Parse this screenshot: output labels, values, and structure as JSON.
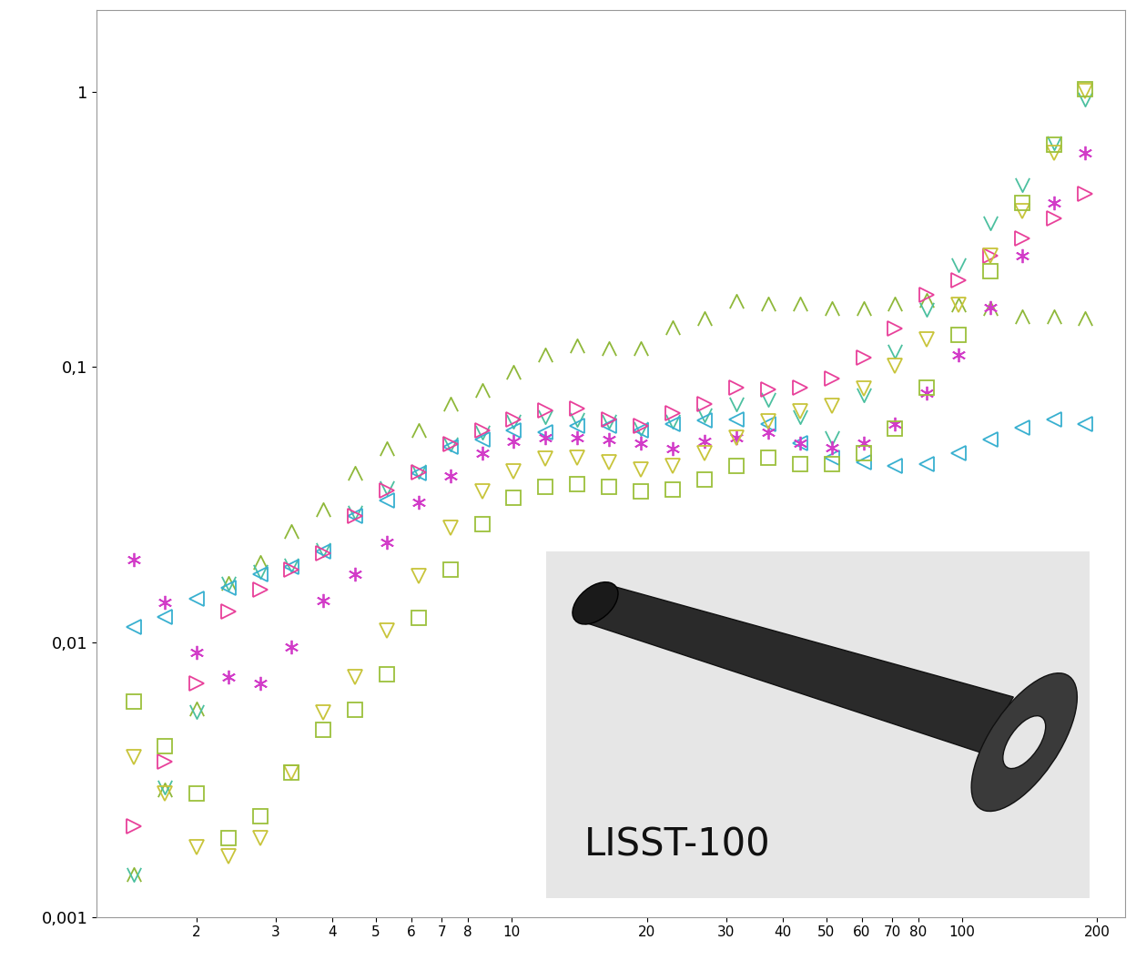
{
  "chart_data": {
    "type": "scatter",
    "log": true,
    "grid": false,
    "tick_labels": true,
    "xlim": [
      1.2,
      230
    ],
    "ylim": [
      0.001,
      2
    ],
    "xticks": [
      2,
      3,
      4,
      5,
      6,
      7,
      8,
      10,
      20,
      30,
      40,
      50,
      60,
      70,
      80,
      100,
      200
    ],
    "yticks": [
      {
        "value": 0.001,
        "label": "0,001"
      },
      {
        "value": 0.01,
        "label": "0,01"
      },
      {
        "value": 0.1,
        "label": "0,1"
      },
      1
    ],
    "annotations": [
      "LISST-100"
    ],
    "x": [
      1.45,
      1.7,
      2.0,
      2.35,
      2.77,
      3.25,
      3.83,
      4.5,
      5.3,
      6.23,
      7.33,
      8.62,
      10.1,
      11.9,
      14.0,
      16.5,
      19.4,
      22.8,
      26.9,
      31.6,
      37.2,
      43.7,
      51.4,
      60.5,
      71.1,
      83.7,
      98.4,
      116,
      136,
      160,
      188
    ],
    "series": [
      {
        "color": "#8fb83a",
        "marker": "caret",
        "values": [
          0.00143,
          0.0029,
          0.0057,
          0.0164,
          0.0195,
          0.0252,
          0.0303,
          0.041,
          0.0505,
          0.0587,
          0.0735,
          0.0823,
          0.0956,
          0.111,
          0.12,
          0.117,
          0.117,
          0.139,
          0.15,
          0.174,
          0.17,
          0.17,
          0.164,
          0.164,
          0.17,
          0.175,
          0.168,
          0.164,
          0.153,
          0.153,
          0.15
        ]
      },
      {
        "color": "#4cc0a0",
        "marker": "vee",
        "values": [
          0.00143,
          0.00297,
          0.0056,
          0.0164,
          0.018,
          0.019,
          0.0217,
          0.0296,
          0.0363,
          0.0419,
          0.0525,
          0.058,
          0.0636,
          0.066,
          0.0643,
          0.0636,
          0.0597,
          0.0636,
          0.067,
          0.0735,
          0.076,
          0.066,
          0.0553,
          0.079,
          0.114,
          0.162,
          0.235,
          0.334,
          0.462,
          0.657,
          0.942
        ]
      },
      {
        "color": "#38b0d0",
        "marker": "triangle_left",
        "values": [
          0.0113,
          0.0123,
          0.0144,
          0.0158,
          0.0177,
          0.0188,
          0.0213,
          0.0288,
          0.0327,
          0.041,
          0.0513,
          0.0545,
          0.0587,
          0.058,
          0.061,
          0.061,
          0.059,
          0.062,
          0.064,
          0.0645,
          0.062,
          0.0529,
          0.0469,
          0.045,
          0.0436,
          0.0443,
          0.0487,
          0.0545,
          0.06,
          0.0643,
          0.0621
        ]
      },
      {
        "color": "#e8409a",
        "marker": "triangle_right",
        "values": [
          0.00213,
          0.00366,
          0.00708,
          0.0129,
          0.0155,
          0.0184,
          0.021,
          0.0288,
          0.0355,
          0.0413,
          0.0525,
          0.0587,
          0.0643,
          0.0698,
          0.0708,
          0.0643,
          0.061,
          0.0682,
          0.0735,
          0.0842,
          0.083,
          0.0842,
          0.0907,
          0.1086,
          0.138,
          0.1835,
          0.207,
          0.2535,
          0.2945,
          0.347,
          0.428
        ]
      },
      {
        "color": "#d23cc8",
        "marker": "asterisk",
        "values": [
          0.02,
          0.0139,
          0.00914,
          0.00746,
          0.00708,
          0.00956,
          0.0141,
          0.0177,
          0.023,
          0.0322,
          0.0403,
          0.0487,
          0.0537,
          0.0553,
          0.0553,
          0.0545,
          0.0529,
          0.0505,
          0.0537,
          0.0553,
          0.058,
          0.0529,
          0.051,
          0.0529,
          0.062,
          0.0805,
          0.111,
          0.165,
          0.254,
          0.397,
          0.601
        ]
      },
      {
        "color": "#c8c43a",
        "marker": "triangle_down",
        "values": [
          0.0038,
          0.00282,
          0.00179,
          0.00166,
          0.00194,
          0.00334,
          0.00553,
          0.00746,
          0.011,
          0.0174,
          0.0261,
          0.0353,
          0.0419,
          0.0464,
          0.047,
          0.0452,
          0.0425,
          0.0436,
          0.0487,
          0.0553,
          0.0636,
          0.0693,
          0.0725,
          0.0835,
          0.101,
          0.126,
          0.168,
          0.254,
          0.369,
          0.601,
          1.015
        ]
      },
      {
        "color": "#9cc03c",
        "marker": "square",
        "values": [
          0.00605,
          0.00419,
          0.00282,
          0.00194,
          0.00233,
          0.00334,
          0.0048,
          0.00565,
          0.00763,
          0.0122,
          0.0184,
          0.0269,
          0.0334,
          0.0366,
          0.0374,
          0.0366,
          0.0353,
          0.0359,
          0.0389,
          0.0436,
          0.047,
          0.0443,
          0.0443,
          0.0487,
          0.0597,
          0.0842,
          0.131,
          0.223,
          0.397,
          0.647,
          1.03
        ]
      }
    ]
  }
}
